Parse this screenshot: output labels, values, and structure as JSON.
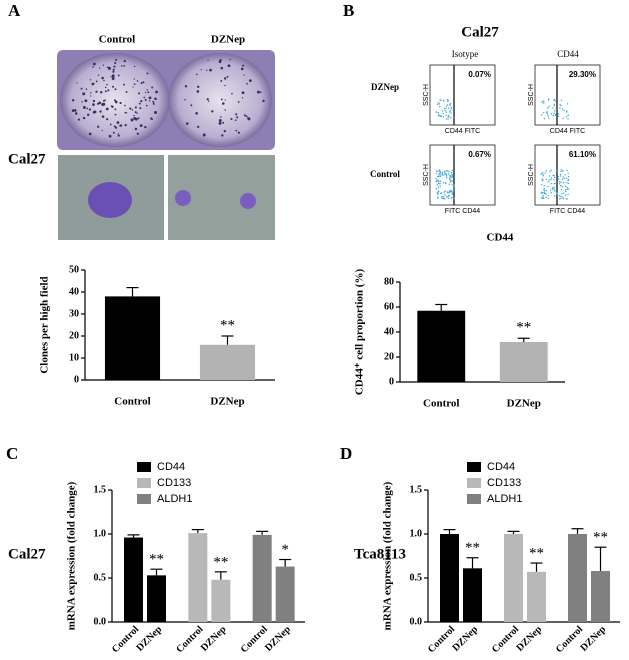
{
  "panel_labels": [
    "A",
    "B",
    "C",
    "D"
  ],
  "panel_a": {
    "columns": [
      "Control",
      "DZNep"
    ],
    "cell_line": "Cal27"
  },
  "panel_b": {
    "title": "Cal27",
    "columns": [
      "Isotype",
      "CD44"
    ],
    "rows": [
      "DZNep",
      "Control"
    ],
    "percentages": [
      [
        "0.07%",
        "29.30%"
      ],
      [
        "0.67%",
        "61.10%"
      ]
    ],
    "y_axis": "SSC-H",
    "x_axes": [
      [
        "CD44 FITC",
        "CD44 FITC"
      ],
      [
        "FITC CD44",
        "FITC CD44"
      ]
    ],
    "x_label": "CD44"
  },
  "chart_data": [
    {
      "type": "bar",
      "ylabel": "Clones per high field",
      "categories": [
        "Control",
        "DZNep"
      ],
      "values": [
        38,
        16
      ],
      "errors": [
        4,
        4
      ],
      "colors": [
        "#000000",
        "#b3b3b3"
      ],
      "ylim": [
        0,
        50
      ],
      "yticks": [
        0,
        10,
        20,
        30,
        40,
        50
      ],
      "annotations": [
        {
          "category": "DZNep",
          "text": "**"
        }
      ]
    },
    {
      "type": "bar",
      "ylabel": "CD44⁺ cell proportion (%)",
      "categories": [
        "Control",
        "DZNep"
      ],
      "values": [
        57,
        32
      ],
      "errors": [
        5,
        3
      ],
      "colors": [
        "#000000",
        "#b3b3b3"
      ],
      "ylim": [
        0,
        80
      ],
      "yticks": [
        0,
        20,
        40,
        60,
        80
      ],
      "annotations": [
        {
          "category": "DZNep",
          "text": "**"
        }
      ]
    },
    {
      "type": "grouped_bar",
      "label": "Cal27",
      "ylabel": "mRNA expression (fold change)",
      "categories": [
        "Control",
        "DZNep"
      ],
      "series": [
        {
          "name": "CD44",
          "color": "#000000",
          "values": [
            0.96,
            0.53
          ],
          "errors": [
            0.03,
            0.07
          ],
          "annotation": "**"
        },
        {
          "name": "CD133",
          "color": "#b8b8b8",
          "values": [
            1.01,
            0.48
          ],
          "errors": [
            0.04,
            0.09
          ],
          "annotation": "**"
        },
        {
          "name": "ALDH1",
          "color": "#808080",
          "values": [
            0.99,
            0.63
          ],
          "errors": [
            0.04,
            0.08
          ],
          "annotation": "*"
        }
      ],
      "ylim": [
        0,
        1.5
      ],
      "yticks": [
        {
          "value": 0,
          "label": "0.0"
        },
        0.5,
        {
          "value": 1,
          "label": "1.0"
        },
        1.5
      ]
    },
    {
      "type": "grouped_bar",
      "label": "Tca8113",
      "ylabel": "mRNA expression (fold change)",
      "categories": [
        "Control",
        "DZNep"
      ],
      "series": [
        {
          "name": "CD44",
          "color": "#000000",
          "values": [
            1.0,
            0.61
          ],
          "errors": [
            0.05,
            0.12
          ],
          "annotation": "**"
        },
        {
          "name": "CD133",
          "color": "#b8b8b8",
          "values": [
            1.0,
            0.57
          ],
          "errors": [
            0.03,
            0.1
          ],
          "annotation": "**"
        },
        {
          "name": "ALDH1",
          "color": "#808080",
          "values": [
            1.0,
            0.58
          ],
          "errors": [
            0.06,
            0.27
          ],
          "annotation": "**"
        }
      ],
      "ylim": [
        0,
        1.5
      ],
      "yticks": [
        {
          "value": 0,
          "label": "0.0"
        },
        0.5,
        {
          "value": 1,
          "label": "1.0"
        },
        1.5
      ]
    }
  ]
}
